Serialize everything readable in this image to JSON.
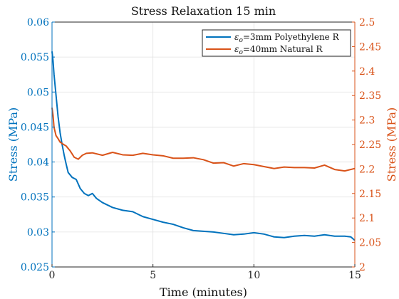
{
  "chart_data": {
    "type": "line",
    "title": "Stress Relaxation 15 min",
    "xlabel": "Time (minutes)",
    "ylabel_left": "Stress (MPa)",
    "ylabel_right": "Stress (MPa)",
    "xlim": [
      0,
      15
    ],
    "ylim_left": [
      0.025,
      0.06
    ],
    "ylim_right": [
      2.0,
      2.5
    ],
    "x_ticks": [
      "0",
      "5",
      "10",
      "15"
    ],
    "y_ticks_left": [
      "0.025",
      "0.03",
      "0.035",
      "0.04",
      "0.045",
      "0.05",
      "0.055",
      "0.06"
    ],
    "y_ticks_right": [
      "2",
      "2.05",
      "2.1",
      "2.15",
      "2.2",
      "2.25",
      "2.3",
      "2.35",
      "2.4",
      "2.45",
      "2.5"
    ],
    "grid": true,
    "legend_position": "top-right",
    "colors": {
      "left_axis": "#0072BD",
      "right_axis": "#D95319"
    },
    "series": [
      {
        "name": "εo=3mm Polyethylene R",
        "legend_symbol": "ε",
        "legend_subscript": "o",
        "legend_rest": "=3mm Polyethylene R",
        "axis": "left",
        "color": "#0072BD",
        "x": [
          0,
          0.05,
          0.1,
          0.2,
          0.3,
          0.4,
          0.5,
          0.6,
          0.7,
          0.8,
          1.0,
          1.2,
          1.4,
          1.6,
          1.8,
          2.0,
          2.2,
          2.5,
          3.0,
          3.5,
          4.0,
          4.5,
          5.0,
          5.5,
          6.0,
          6.5,
          7.0,
          7.5,
          8.0,
          8.5,
          9.0,
          9.5,
          10.0,
          10.5,
          11.0,
          11.5,
          12.0,
          12.5,
          13.0,
          13.5,
          14.0,
          14.5,
          14.8,
          15.0
        ],
        "values": [
          0.0558,
          0.0545,
          0.0525,
          0.0495,
          0.0465,
          0.0442,
          0.0425,
          0.041,
          0.0397,
          0.0385,
          0.0378,
          0.0375,
          0.0362,
          0.0355,
          0.0352,
          0.0355,
          0.0348,
          0.0342,
          0.0335,
          0.0331,
          0.0329,
          0.0322,
          0.0318,
          0.0314,
          0.0311,
          0.0306,
          0.0302,
          0.0301,
          0.03,
          0.0298,
          0.0296,
          0.0297,
          0.0299,
          0.0297,
          0.0293,
          0.0292,
          0.0294,
          0.0295,
          0.0294,
          0.0296,
          0.0294,
          0.0294,
          0.0293,
          0.0288
        ]
      },
      {
        "name": "εo=40mm Natural R",
        "legend_symbol": "ε",
        "legend_subscript": "o",
        "legend_rest": "=40mm Natural R",
        "axis": "right",
        "color": "#D95319",
        "x": [
          0,
          0.05,
          0.1,
          0.2,
          0.3,
          0.4,
          0.5,
          0.7,
          0.9,
          1.1,
          1.3,
          1.5,
          1.7,
          2.0,
          2.5,
          3.0,
          3.5,
          4.0,
          4.5,
          5.0,
          5.5,
          6.0,
          6.5,
          7.0,
          7.5,
          8.0,
          8.5,
          9.0,
          9.5,
          10.0,
          10.5,
          11.0,
          11.5,
          12.0,
          12.5,
          13.0,
          13.5,
          14.0,
          14.5,
          15.0
        ],
        "values": [
          2.325,
          2.31,
          2.285,
          2.268,
          2.262,
          2.255,
          2.252,
          2.247,
          2.237,
          2.224,
          2.22,
          2.228,
          2.232,
          2.233,
          2.228,
          2.234,
          2.229,
          2.228,
          2.232,
          2.229,
          2.227,
          2.222,
          2.222,
          2.223,
          2.219,
          2.212,
          2.213,
          2.206,
          2.211,
          2.209,
          2.205,
          2.201,
          2.204,
          2.203,
          2.203,
          2.202,
          2.208,
          2.199,
          2.196,
          2.201
        ]
      }
    ]
  }
}
